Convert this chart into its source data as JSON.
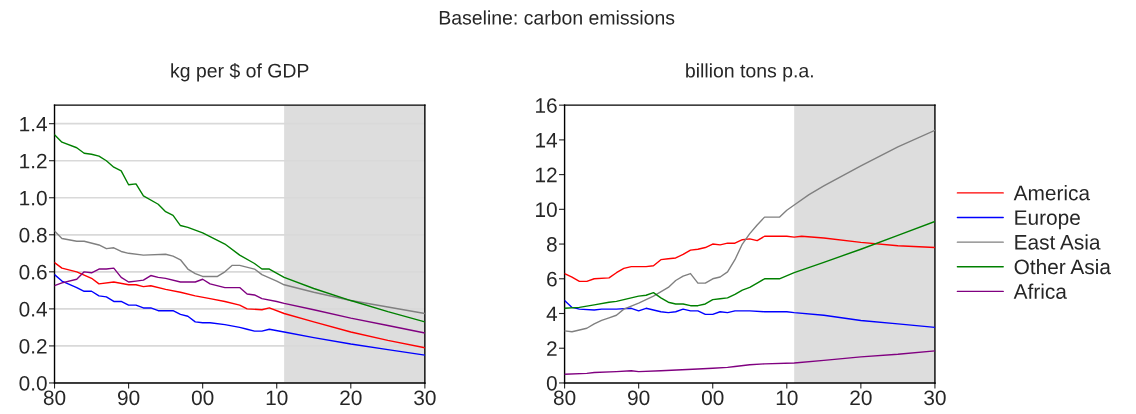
{
  "chart_data": [
    {
      "type": "line",
      "title": "Baseline: carbon emissions",
      "subtitle": "kg per $ of GDP",
      "xlim": [
        1980,
        2030
      ],
      "ylim": [
        0,
        1.5
      ],
      "xticks": [
        {
          "value": 1980,
          "label": "80"
        },
        {
          "value": 1990,
          "label": "90"
        },
        {
          "value": 2000,
          "label": "00"
        },
        {
          "value": 2010,
          "label": "10"
        },
        {
          "value": 2020,
          "label": "20"
        },
        {
          "value": 2030,
          "label": "30"
        }
      ],
      "yticks": [
        {
          "value": 0,
          "label": "0.0"
        },
        {
          "value": 0.2,
          "label": "0.2"
        },
        {
          "value": 0.4,
          "label": "0.4"
        },
        {
          "value": 0.6,
          "label": "0.6"
        },
        {
          "value": 0.8,
          "label": "0.8"
        },
        {
          "value": 1.0,
          "label": "1.0"
        },
        {
          "value": 1.2,
          "label": "1.2"
        },
        {
          "value": 1.4,
          "label": "1.4"
        }
      ],
      "grid": "y",
      "legend": false,
      "bands": [
        {
          "axis": "x",
          "from": 2011,
          "to": 2030,
          "color": "#dddddd"
        }
      ],
      "series": [
        {
          "color": "#ff0000",
          "x": [
            1980,
            1981,
            1983,
            1985,
            1986,
            1988,
            1990,
            1991,
            1992,
            1993,
            1995,
            1997,
            1999,
            2001,
            2003,
            2005,
            2006,
            2008,
            2009,
            2011,
            2015,
            2020,
            2025,
            2030
          ],
          "values": [
            0.65,
            0.62,
            0.6,
            0.565,
            0.535,
            0.545,
            0.53,
            0.53,
            0.52,
            0.525,
            0.505,
            0.49,
            0.47,
            0.455,
            0.44,
            0.42,
            0.4,
            0.395,
            0.405,
            0.375,
            0.33,
            0.275,
            0.23,
            0.19
          ]
        },
        {
          "color": "#0000ff",
          "x": [
            1980,
            1981,
            1983,
            1984,
            1985,
            1986,
            1987,
            1988,
            1989,
            1990,
            1991,
            1992,
            1993,
            1994,
            1996,
            1997,
            1998,
            1999,
            2000,
            2001,
            2003,
            2005,
            2006,
            2007,
            2008,
            2009,
            2011,
            2015,
            2020,
            2025,
            2030
          ],
          "values": [
            0.585,
            0.55,
            0.515,
            0.495,
            0.495,
            0.47,
            0.465,
            0.44,
            0.44,
            0.42,
            0.42,
            0.405,
            0.405,
            0.39,
            0.39,
            0.37,
            0.36,
            0.33,
            0.325,
            0.325,
            0.315,
            0.3,
            0.29,
            0.28,
            0.28,
            0.29,
            0.275,
            0.245,
            0.21,
            0.18,
            0.15
          ]
        },
        {
          "color": "#808080",
          "x": [
            1980,
            1981,
            1983,
            1984,
            1986,
            1987,
            1988,
            1989,
            1990,
            1992,
            1995,
            1996,
            1997,
            1998,
            1999,
            2000,
            2002,
            2003,
            2004,
            2005,
            2007,
            2008,
            2010,
            2011,
            2015,
            2020,
            2025,
            2030
          ],
          "values": [
            0.82,
            0.78,
            0.765,
            0.765,
            0.745,
            0.725,
            0.73,
            0.71,
            0.7,
            0.69,
            0.695,
            0.685,
            0.665,
            0.615,
            0.59,
            0.575,
            0.575,
            0.6,
            0.635,
            0.635,
            0.615,
            0.585,
            0.55,
            0.53,
            0.49,
            0.445,
            0.41,
            0.375
          ]
        },
        {
          "color": "#008000",
          "x": [
            1980,
            1981,
            1983,
            1984,
            1985,
            1986,
            1987,
            1988,
            1989,
            1990,
            1991,
            1992,
            1994,
            1995,
            1996,
            1997,
            1998,
            2000,
            2002,
            2003,
            2005,
            2007,
            2008,
            2009,
            2011,
            2015,
            2020,
            2025,
            2030
          ],
          "values": [
            1.34,
            1.3,
            1.27,
            1.24,
            1.235,
            1.225,
            1.2,
            1.165,
            1.145,
            1.07,
            1.075,
            1.01,
            0.965,
            0.925,
            0.905,
            0.85,
            0.84,
            0.81,
            0.77,
            0.75,
            0.69,
            0.645,
            0.615,
            0.615,
            0.57,
            0.51,
            0.445,
            0.385,
            0.33
          ]
        },
        {
          "color": "#800080",
          "x": [
            1980,
            1981,
            1983,
            1984,
            1985,
            1986,
            1987,
            1988,
            1989,
            1990,
            1991,
            1992,
            1993,
            1994,
            1995,
            1997,
            1999,
            2000,
            2001,
            2003,
            2005,
            2006,
            2007,
            2008,
            2010,
            2011,
            2015,
            2020,
            2025,
            2030
          ],
          "values": [
            0.525,
            0.54,
            0.56,
            0.6,
            0.595,
            0.615,
            0.615,
            0.62,
            0.57,
            0.545,
            0.55,
            0.555,
            0.58,
            0.57,
            0.565,
            0.545,
            0.545,
            0.56,
            0.535,
            0.515,
            0.515,
            0.48,
            0.475,
            0.455,
            0.44,
            0.43,
            0.395,
            0.35,
            0.31,
            0.27
          ]
        }
      ]
    },
    {
      "type": "line",
      "subtitle": "billion tons p.a.",
      "xlim": [
        1980,
        2030
      ],
      "ylim": [
        0,
        16
      ],
      "xticks": [
        {
          "value": 1980,
          "label": "80"
        },
        {
          "value": 1990,
          "label": "90"
        },
        {
          "value": 2000,
          "label": "00"
        },
        {
          "value": 2010,
          "label": "10"
        },
        {
          "value": 2020,
          "label": "20"
        },
        {
          "value": 2030,
          "label": "30"
        }
      ],
      "yticks": [
        0,
        2,
        4,
        6,
        8,
        10,
        12,
        14,
        16
      ],
      "grid": false,
      "legend": "right",
      "bands": [
        {
          "axis": "x",
          "from": 2011,
          "to": 2030,
          "color": "#dddddd"
        }
      ],
      "series": [
        {
          "name": "America",
          "color": "#ff0000",
          "x": [
            1980,
            1981,
            1982,
            1983,
            1984,
            1986,
            1987,
            1988,
            1989,
            1991,
            1992,
            1993,
            1994,
            1995,
            1996,
            1997,
            1998,
            1999,
            2000,
            2001,
            2002,
            2003,
            2004,
            2005,
            2006,
            2007,
            2010,
            2011,
            2012,
            2015,
            2020,
            2025,
            2030
          ],
          "values": [
            6.3,
            6.1,
            5.85,
            5.85,
            6.0,
            6.05,
            6.35,
            6.6,
            6.7,
            6.7,
            6.75,
            7.1,
            7.15,
            7.2,
            7.4,
            7.65,
            7.7,
            7.8,
            8.0,
            7.95,
            8.05,
            8.05,
            8.25,
            8.3,
            8.2,
            8.45,
            8.45,
            8.4,
            8.45,
            8.35,
            8.1,
            7.9,
            7.8
          ]
        },
        {
          "name": "Europe",
          "color": "#0000ff",
          "x": [
            1980,
            1981,
            1982,
            1984,
            1985,
            1987,
            1989,
            1990,
            1991,
            1992,
            1993,
            1994,
            1995,
            1996,
            1997,
            1998,
            1999,
            2000,
            2001,
            2002,
            2003,
            2005,
            2007,
            2010,
            2011,
            2015,
            2020,
            2025,
            2030
          ],
          "values": [
            4.75,
            4.35,
            4.25,
            4.2,
            4.25,
            4.25,
            4.3,
            4.15,
            4.3,
            4.2,
            4.1,
            4.05,
            4.1,
            4.25,
            4.15,
            4.15,
            3.95,
            3.95,
            4.1,
            4.05,
            4.15,
            4.15,
            4.1,
            4.1,
            4.05,
            3.9,
            3.6,
            3.4,
            3.2
          ]
        },
        {
          "name": "East Asia",
          "color": "#808080",
          "x": [
            1980,
            1981,
            1983,
            1984,
            1985,
            1986,
            1987,
            1988,
            1990,
            1992,
            1994,
            1995,
            1996,
            1997,
            1998,
            1999,
            2000,
            2001,
            2002,
            2003,
            2004,
            2005,
            2006,
            2007,
            2009,
            2010,
            2011,
            2013,
            2015,
            2020,
            2025,
            2030
          ],
          "values": [
            3.0,
            2.95,
            3.15,
            3.4,
            3.6,
            3.75,
            3.9,
            4.25,
            4.6,
            5.0,
            5.5,
            5.9,
            6.15,
            6.3,
            5.75,
            5.75,
            6.0,
            6.1,
            6.4,
            7.1,
            8.0,
            8.6,
            9.1,
            9.55,
            9.55,
            9.95,
            10.25,
            10.85,
            11.35,
            12.5,
            13.6,
            14.55
          ]
        },
        {
          "name": "Other Asia",
          "color": "#008000",
          "x": [
            1980,
            1982,
            1984,
            1986,
            1987,
            1988,
            1990,
            1991,
            1992,
            1993,
            1994,
            1995,
            1996,
            1997,
            1998,
            1999,
            2000,
            2001,
            2002,
            2003,
            2004,
            2005,
            2006,
            2007,
            2009,
            2011,
            2015,
            2020,
            2025,
            2030
          ],
          "values": [
            4.3,
            4.35,
            4.5,
            4.65,
            4.7,
            4.8,
            5.0,
            5.05,
            5.2,
            4.9,
            4.65,
            4.55,
            4.55,
            4.45,
            4.45,
            4.55,
            4.8,
            4.85,
            4.9,
            5.1,
            5.35,
            5.5,
            5.75,
            6.0,
            6.0,
            6.35,
            6.95,
            7.7,
            8.5,
            9.3
          ]
        },
        {
          "name": "Africa",
          "color": "#800080",
          "x": [
            1980,
            1983,
            1984,
            1987,
            1989,
            1990,
            1993,
            1998,
            2000,
            2002,
            2003,
            2005,
            2007,
            2011,
            2015,
            2020,
            2025,
            2030
          ],
          "values": [
            0.5,
            0.55,
            0.6,
            0.65,
            0.7,
            0.65,
            0.7,
            0.8,
            0.85,
            0.9,
            0.95,
            1.05,
            1.1,
            1.15,
            1.3,
            1.5,
            1.65,
            1.85
          ]
        }
      ]
    }
  ]
}
